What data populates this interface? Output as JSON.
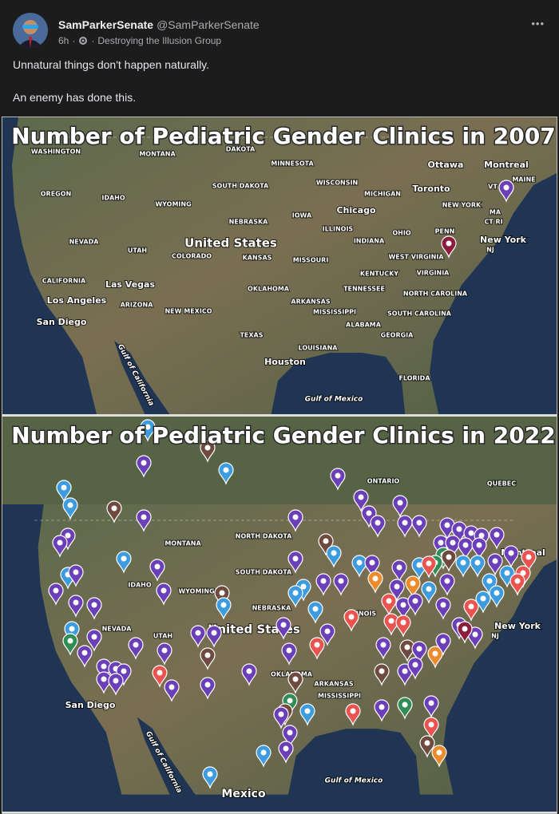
{
  "post": {
    "author": "SamParkerSenate",
    "handle": "@SamParkerSenate",
    "time": "6h",
    "separator": "·",
    "group": "Destroying the Illusion Group",
    "menu": "•••",
    "text": [
      "Unnatural things don't happen naturally.",
      "An enemy has done this."
    ]
  },
  "maps": [
    {
      "title": "Number of Pediatric Gender Clinics in 2007",
      "labels": [
        "WASHINGTON",
        "MONTANA",
        "DAKOTA",
        "MINNESOTA",
        "Ottawa",
        "Montreal",
        "OREGON",
        "IDAHO",
        "SOUTH DAKOTA",
        "WISCONSIN",
        "MICHIGAN",
        "Toronto",
        "MAINE",
        "VT",
        "WYOMING",
        "NEBRASKA",
        "IOWA",
        "Chicago",
        "NEW YORK",
        "MA",
        "CT RI",
        "NEVADA",
        "UTAH",
        "United States",
        "COLORADO",
        "KANSAS",
        "ILLINOIS",
        "INDIANA",
        "OHIO",
        "PENN",
        "New York",
        "NJ",
        "MISSOURI",
        "WEST VIRGINIA",
        "KENTUCKY",
        "VIRGINIA",
        "CALIFORNIA",
        "Las Vegas",
        "OKLAHOMA",
        "TENNESSEE",
        "NORTH CAROLINA",
        "Los Angeles",
        "ARIZONA",
        "NEW MEXICO",
        "ARKANSAS",
        "MISSISSIPPI",
        "SOUTH CAROLINA",
        "San Diego",
        "ALABAMA",
        "GEORGIA",
        "TEXAS",
        "LOUISIANA",
        "Houston",
        "Gulf of California",
        "FLORIDA",
        "Gulf of Mexico"
      ]
    },
    {
      "title": "Number of Pediatric Gender Clinics in 2022",
      "labels": [
        "ONTARIO",
        "QUEBEC",
        "NORTH DAKOTA",
        "SOUTH DAKOTA",
        "MONTANA",
        "IDAHO",
        "WYOMING",
        "NEBRASKA",
        "United States",
        "NEVADA",
        "UTAH",
        "ILLINOIS",
        "OKLAHOMA",
        "ARKANSAS",
        "MISSISSIPPI",
        "New York",
        "NJ",
        "Montreal",
        "San Diego",
        "Gulf of California",
        "Gulf of Mexico",
        "Mexico"
      ]
    }
  ]
}
